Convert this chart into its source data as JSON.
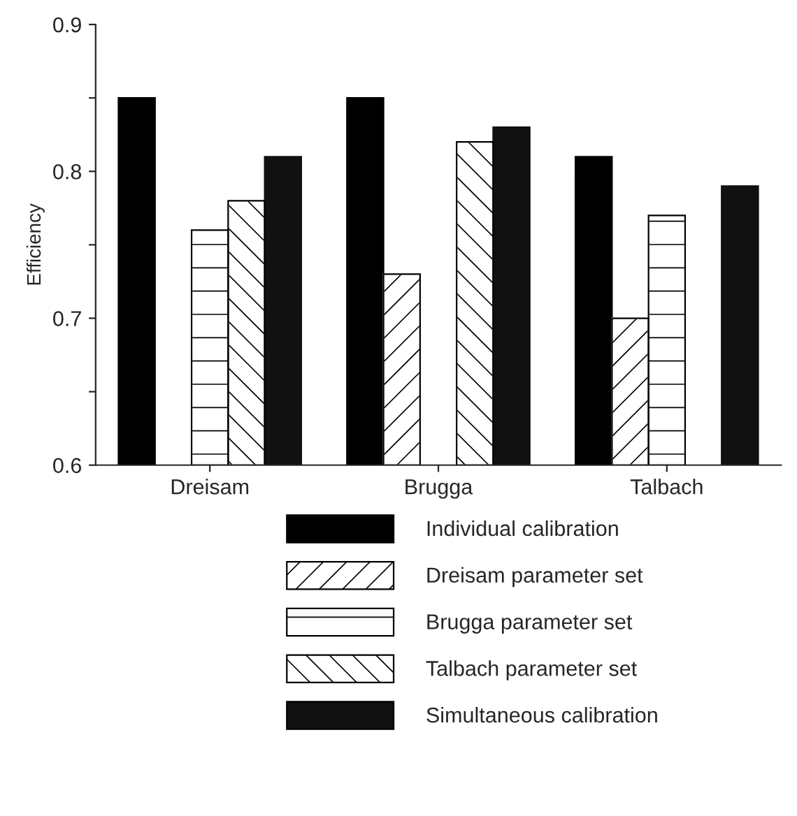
{
  "chart_data": {
    "type": "bar",
    "ylabel": "Efficiency",
    "categories": [
      "Dreisam",
      "Brugga",
      "Talbach"
    ],
    "series": [
      {
        "name": "Individual calibration",
        "color": "#000000",
        "values": [
          0.85,
          0.85,
          0.81
        ]
      },
      {
        "name": "Dreisam parameter set",
        "color": "#ffffff",
        "values": [
          null,
          0.73,
          0.7
        ]
      },
      {
        "name": "Brugga parameter set",
        "color": "#ffffff",
        "values": [
          0.76,
          null,
          0.77
        ]
      },
      {
        "name": "Talbach parameter set",
        "color": "#ffffff",
        "values": [
          0.78,
          0.82,
          null
        ]
      },
      {
        "name": "Simultaneous calibration",
        "color": "#111111",
        "values": [
          0.81,
          0.83,
          0.79
        ]
      }
    ],
    "ylim": [
      0.6,
      0.9
    ],
    "yticks": [
      0.6,
      {
        "value": 0.65,
        "label": null
      },
      0.7,
      {
        "value": 0.75,
        "label": null
      },
      0.8,
      {
        "value": 0.85,
        "label": null
      },
      0.9
    ],
    "grid": false,
    "legend": "bottom"
  }
}
